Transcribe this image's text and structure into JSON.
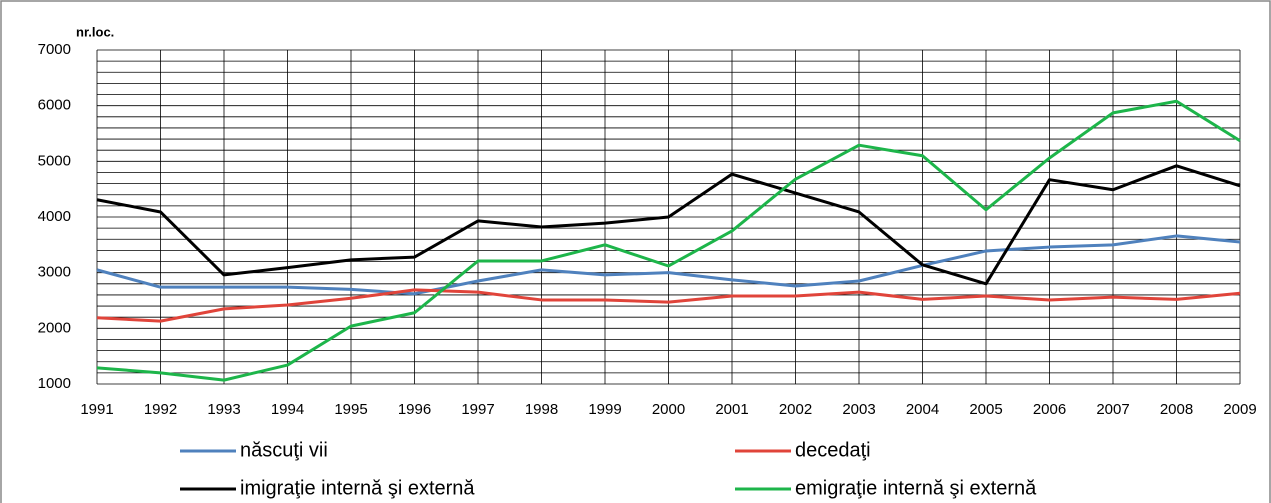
{
  "chart_data": {
    "type": "line",
    "y_label": "nr.loc.",
    "categories": [
      "1991",
      "1992",
      "1993",
      "1994",
      "1995",
      "1996",
      "1997",
      "1998",
      "1999",
      "2000",
      "2001",
      "2002",
      "2003",
      "2004",
      "2005",
      "2006",
      "2007",
      "2008",
      "2009"
    ],
    "series": [
      {
        "name": "născuţi vii",
        "color": "#4f81bd",
        "values": [
          3050,
          2740,
          2740,
          2740,
          2700,
          2620,
          2850,
          3050,
          2960,
          3000,
          2870,
          2760,
          2850,
          3130,
          3390,
          3460,
          3500,
          3660,
          3550
        ]
      },
      {
        "name": "decedaţi",
        "color": "#e0443a",
        "values": [
          2190,
          2130,
          2350,
          2420,
          2540,
          2690,
          2650,
          2510,
          2510,
          2470,
          2580,
          2580,
          2650,
          2520,
          2580,
          2510,
          2560,
          2520,
          2630
        ]
      },
      {
        "name": "imigraţie internă şi externă",
        "color": "#000000",
        "values": [
          4310,
          4090,
          2960,
          3090,
          3230,
          3280,
          3930,
          3820,
          3890,
          4000,
          4770,
          4430,
          4090,
          3140,
          2800,
          4670,
          4490,
          4920,
          4560
        ]
      },
      {
        "name": "emigraţie internă şi externă",
        "color": "#1db54a",
        "values": [
          1290,
          1200,
          1070,
          1340,
          2040,
          2280,
          3210,
          3210,
          3500,
          3120,
          3750,
          4680,
          5290,
          5100,
          4130,
          5060,
          5870,
          6080,
          5370
        ]
      }
    ],
    "ylim": [
      1000,
      7000
    ],
    "yticks": [
      1000,
      2000,
      3000,
      4000,
      5000,
      6000,
      7000
    ],
    "minor_yticks": [
      1200,
      1400,
      1600,
      1800,
      2200,
      2400,
      2600,
      2800,
      3200,
      3400,
      3600,
      3800,
      4200,
      4400,
      4600,
      4800,
      5200,
      5400,
      5600,
      5800,
      6200,
      6400,
      6600,
      6800
    ],
    "grid": true,
    "legend_position": "bottom"
  }
}
